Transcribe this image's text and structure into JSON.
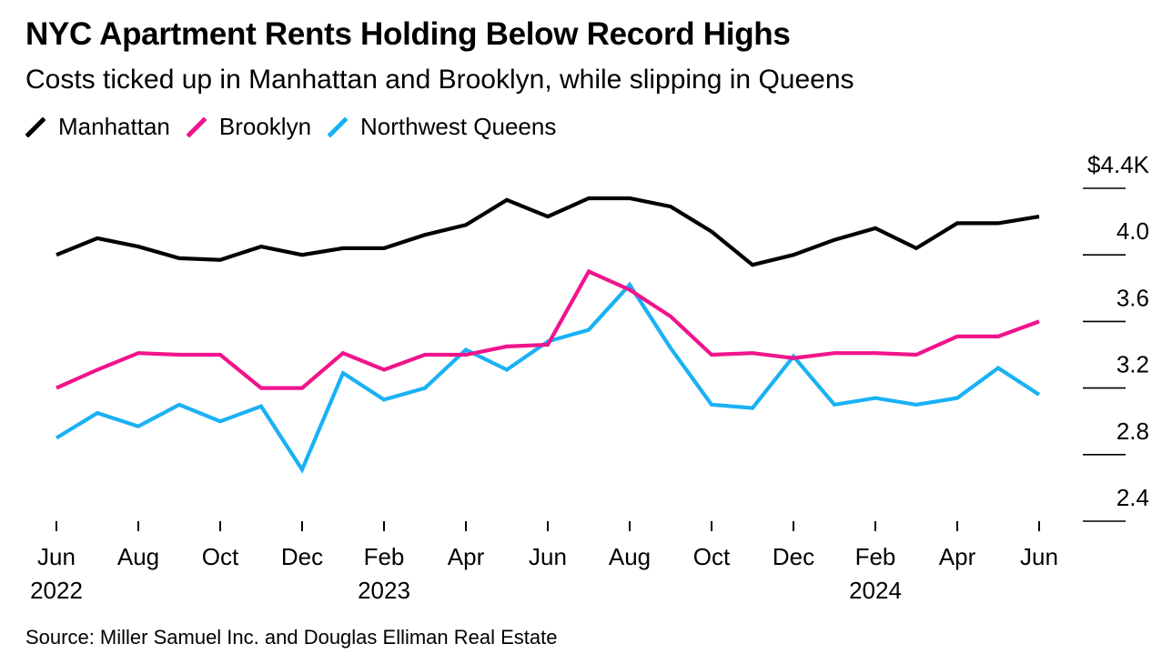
{
  "title": "NYC Apartment Rents Holding Below Record Highs",
  "subtitle": "Costs ticked up in Manhattan and Brooklyn, while slipping in Queens",
  "source": "Source: Miller Samuel Inc. and Douglas Elliman Real Estate",
  "colors": {
    "manhattan": "#000000",
    "brooklyn": "#f0148c",
    "queens": "#1ab1f5"
  },
  "chart_data": {
    "type": "line",
    "title": "NYC Apartment Rents Holding Below Record Highs",
    "subtitle": "Costs ticked up in Manhattan and Brooklyn, while slipping in Queens",
    "xlabel": "",
    "ylabel": "",
    "ylim": [
      2.25,
      4.55
    ],
    "y_ticks": [
      {
        "value": 4.4,
        "label": "$4.4K"
      },
      {
        "value": 4.0,
        "label": "4.0"
      },
      {
        "value": 3.6,
        "label": "3.6"
      },
      {
        "value": 3.2,
        "label": "3.2"
      },
      {
        "value": 2.8,
        "label": "2.8"
      },
      {
        "value": 2.4,
        "label": "2.4"
      }
    ],
    "y_axis_side": "right",
    "legend_position": "top-left",
    "x": [
      "Jun 2022",
      "Jul 2022",
      "Aug 2022",
      "Sep 2022",
      "Oct 2022",
      "Nov 2022",
      "Dec 2022",
      "Jan 2023",
      "Feb 2023",
      "Mar 2023",
      "Apr 2023",
      "May 2023",
      "Jun 2023",
      "Jul 2023",
      "Aug 2023",
      "Sep 2023",
      "Oct 2023",
      "Nov 2023",
      "Dec 2023",
      "Jan 2024",
      "Feb 2024",
      "Mar 2024",
      "Apr 2024",
      "May 2024",
      "Jun 2024"
    ],
    "x_ticks": [
      {
        "index": 0,
        "month": "Jun",
        "year": "2022"
      },
      {
        "index": 2,
        "month": "Aug",
        "year": ""
      },
      {
        "index": 4,
        "month": "Oct",
        "year": ""
      },
      {
        "index": 6,
        "month": "Dec",
        "year": ""
      },
      {
        "index": 8,
        "month": "Feb",
        "year": "2023"
      },
      {
        "index": 10,
        "month": "Apr",
        "year": ""
      },
      {
        "index": 12,
        "month": "Jun",
        "year": ""
      },
      {
        "index": 14,
        "month": "Aug",
        "year": ""
      },
      {
        "index": 16,
        "month": "Oct",
        "year": ""
      },
      {
        "index": 18,
        "month": "Dec",
        "year": ""
      },
      {
        "index": 20,
        "month": "Feb",
        "year": "2024"
      },
      {
        "index": 22,
        "month": "Apr",
        "year": ""
      },
      {
        "index": 24,
        "month": "Jun",
        "year": ""
      }
    ],
    "series": [
      {
        "name": "Manhattan",
        "key": "manhattan",
        "values": [
          4.0,
          4.1,
          4.05,
          3.98,
          3.97,
          4.05,
          4.0,
          4.04,
          4.04,
          4.12,
          4.18,
          4.33,
          4.23,
          4.34,
          4.34,
          4.29,
          4.14,
          3.94,
          4.0,
          4.09,
          4.16,
          4.04,
          4.19,
          4.19,
          4.23
        ]
      },
      {
        "name": "Brooklyn",
        "key": "brooklyn",
        "values": [
          3.2,
          3.31,
          3.41,
          3.4,
          3.4,
          3.2,
          3.2,
          3.41,
          3.31,
          3.4,
          3.4,
          3.45,
          3.46,
          3.9,
          3.79,
          3.63,
          3.4,
          3.41,
          3.38,
          3.41,
          3.41,
          3.4,
          3.51,
          3.51,
          3.6
        ]
      },
      {
        "name": "Northwest Queens",
        "key": "queens",
        "values": [
          2.9,
          3.05,
          2.97,
          3.1,
          3.0,
          3.09,
          2.71,
          3.29,
          3.13,
          3.2,
          3.43,
          3.31,
          3.48,
          3.55,
          3.82,
          3.44,
          3.1,
          3.08,
          3.39,
          3.1,
          3.14,
          3.1,
          3.14,
          3.32,
          3.16
        ]
      }
    ]
  }
}
